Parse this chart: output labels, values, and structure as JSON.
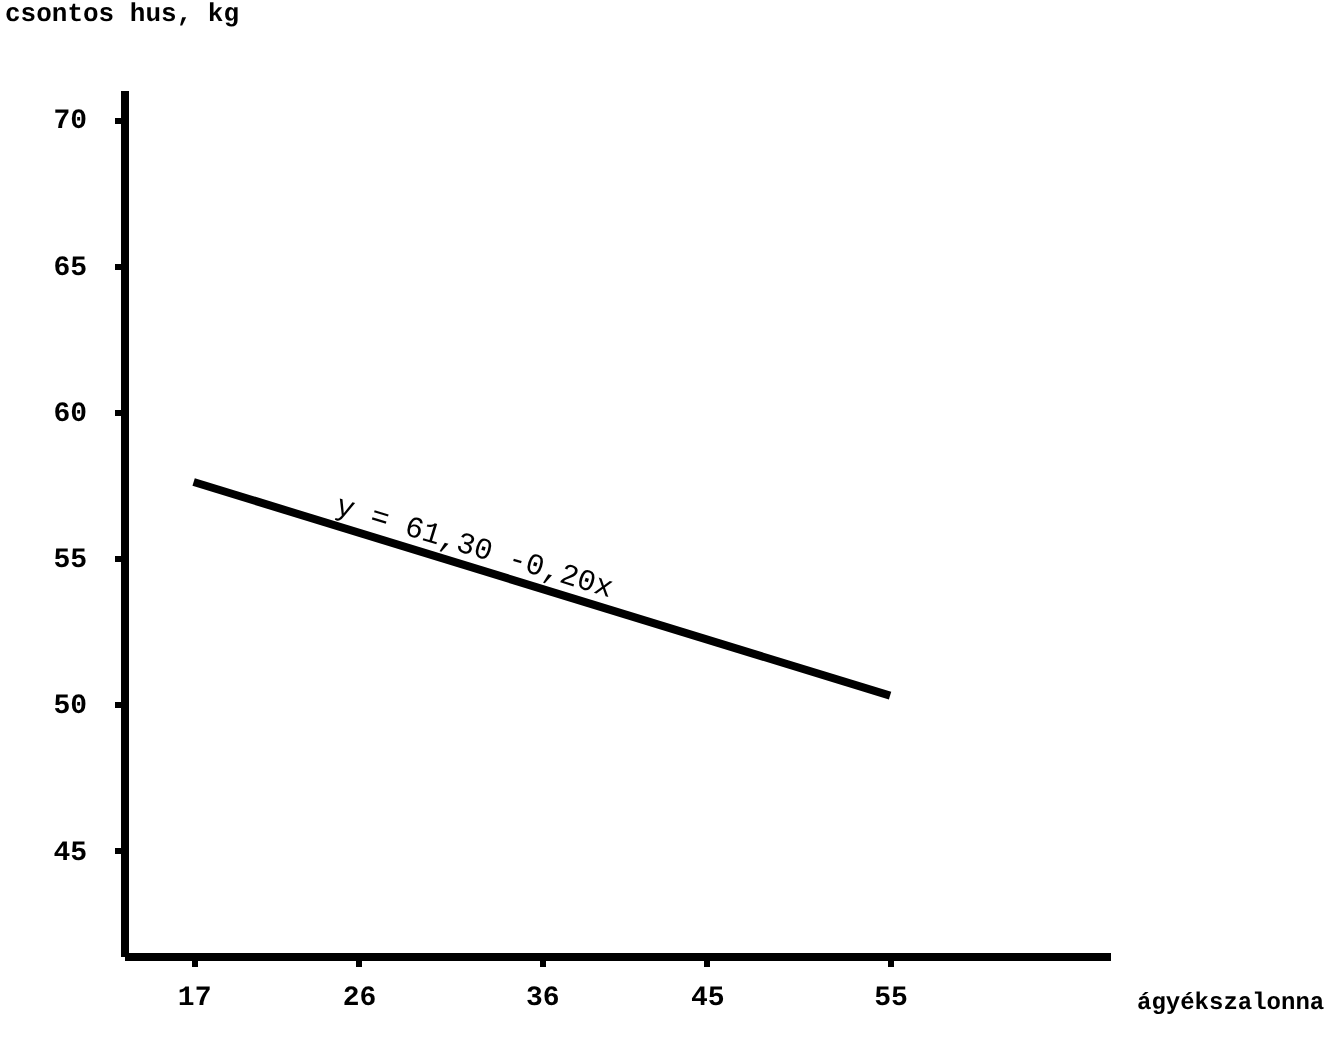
{
  "chart_data": {
    "type": "line",
    "xlabel": "ágyékszalonna",
    "ylabel": "csontos hus, kg",
    "x": [
      17,
      55
    ],
    "series": [
      {
        "color": "#000000",
        "values": [
          57.6,
          50.3
        ]
      }
    ],
    "xlim": [
      13.2,
      67
    ],
    "xticks": [
      17,
      26,
      36,
      45,
      55
    ],
    "ylim": [
      41.4,
      71
    ],
    "yticks": [
      45,
      50,
      55,
      60,
      65,
      70
    ],
    "grid": false,
    "marker": "none",
    "line_style": "solid",
    "annotations": [
      {
        "text": "y = 61,30 -0,20x",
        "x": 32,
        "y": 54.7
      }
    ]
  }
}
